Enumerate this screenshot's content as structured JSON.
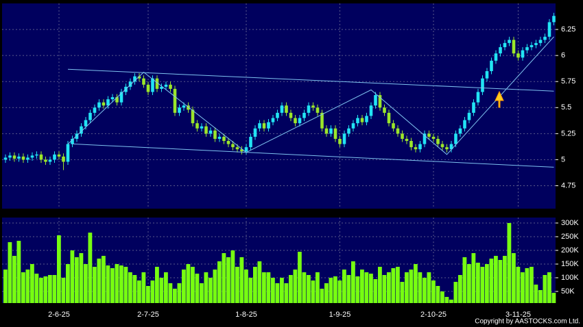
{
  "chart_data": [
    {
      "type": "candlestick",
      "open": [
        5.0,
        5.02,
        5.04,
        5.01,
        5.03,
        5.0,
        5.02,
        5.04,
        5.05,
        5.0,
        4.98,
        5.0,
        5.05,
        5.03,
        4.98,
        5.15,
        5.2,
        5.25,
        5.32,
        5.38,
        5.45,
        5.5,
        5.55,
        5.52,
        5.58,
        5.6,
        5.55,
        5.65,
        5.7,
        5.75,
        5.8,
        5.78,
        5.72,
        5.65,
        5.78,
        5.68,
        5.7,
        5.72,
        5.68,
        5.45,
        5.5,
        5.52,
        5.48,
        5.35,
        5.3,
        5.32,
        5.25,
        5.28,
        5.2,
        5.22,
        5.18,
        5.15,
        5.12,
        5.1,
        5.08,
        5.12,
        5.22,
        5.3,
        5.35,
        5.3,
        5.36,
        5.4,
        5.45,
        5.52,
        5.45,
        5.4,
        5.35,
        5.4,
        5.45,
        5.52,
        5.5,
        5.45,
        5.3,
        5.25,
        5.3,
        5.2,
        5.15,
        5.25,
        5.3,
        5.35,
        5.4,
        5.36,
        5.42,
        5.52,
        5.62,
        5.5,
        5.45,
        5.35,
        5.3,
        5.25,
        5.2,
        5.18,
        5.12,
        5.1,
        5.15,
        5.25,
        5.22,
        5.2,
        5.15,
        5.12,
        5.1,
        5.15,
        5.25,
        5.3,
        5.38,
        5.45,
        5.55,
        5.65,
        5.78,
        5.85,
        5.95,
        6.02,
        6.08,
        6.12,
        6.15,
        6.02,
        5.98,
        6.05,
        6.08,
        6.1,
        6.12,
        6.15,
        6.18,
        6.32
      ],
      "high": [
        5.05,
        5.07,
        5.07,
        5.06,
        5.06,
        5.05,
        5.07,
        5.08,
        5.08,
        5.03,
        5.03,
        5.08,
        5.08,
        5.06,
        5.18,
        5.23,
        5.28,
        5.35,
        5.41,
        5.48,
        5.53,
        5.58,
        5.58,
        5.61,
        5.63,
        5.63,
        5.68,
        5.73,
        5.78,
        5.83,
        5.83,
        5.81,
        5.75,
        5.81,
        5.81,
        5.73,
        5.75,
        5.75,
        5.71,
        5.53,
        5.55,
        5.55,
        5.51,
        5.38,
        5.35,
        5.35,
        5.31,
        5.31,
        5.25,
        5.25,
        5.21,
        5.18,
        5.15,
        5.13,
        5.15,
        5.25,
        5.33,
        5.38,
        5.38,
        5.39,
        5.43,
        5.48,
        5.55,
        5.55,
        5.48,
        5.43,
        5.43,
        5.48,
        5.55,
        5.55,
        5.53,
        5.48,
        5.33,
        5.33,
        5.33,
        5.23,
        5.28,
        5.33,
        5.38,
        5.43,
        5.43,
        5.45,
        5.55,
        5.65,
        5.65,
        5.53,
        5.48,
        5.38,
        5.33,
        5.28,
        5.23,
        5.21,
        5.15,
        5.18,
        5.28,
        5.28,
        5.25,
        5.23,
        5.18,
        5.15,
        5.18,
        5.28,
        5.33,
        5.41,
        5.48,
        5.58,
        5.68,
        5.81,
        5.88,
        5.98,
        6.05,
        6.11,
        6.15,
        6.18,
        6.18,
        6.05,
        6.08,
        6.11,
        6.13,
        6.15,
        6.18,
        6.21,
        6.35,
        6.41
      ],
      "low": [
        4.97,
        4.99,
        4.98,
        4.98,
        4.97,
        4.97,
        4.99,
        5.01,
        4.97,
        4.95,
        4.95,
        4.97,
        5.0,
        4.9,
        4.95,
        5.12,
        5.17,
        5.22,
        5.29,
        5.35,
        5.42,
        5.47,
        5.49,
        5.49,
        5.55,
        5.52,
        5.52,
        5.62,
        5.67,
        5.72,
        5.75,
        5.69,
        5.62,
        5.62,
        5.65,
        5.65,
        5.67,
        5.65,
        5.42,
        5.42,
        5.47,
        5.45,
        5.32,
        5.27,
        5.27,
        5.22,
        5.22,
        5.17,
        5.17,
        5.15,
        5.12,
        5.09,
        5.07,
        5.05,
        5.05,
        5.09,
        5.19,
        5.27,
        5.27,
        5.27,
        5.33,
        5.37,
        5.42,
        5.42,
        5.37,
        5.32,
        5.32,
        5.37,
        5.42,
        5.47,
        5.42,
        5.27,
        5.22,
        5.22,
        5.17,
        5.12,
        5.12,
        5.22,
        5.27,
        5.32,
        5.33,
        5.33,
        5.39,
        5.49,
        5.47,
        5.42,
        5.32,
        5.27,
        5.22,
        5.17,
        5.15,
        5.09,
        5.07,
        5.07,
        5.12,
        5.19,
        5.17,
        5.12,
        5.09,
        5.07,
        5.07,
        5.12,
        5.22,
        5.27,
        5.35,
        5.42,
        5.52,
        5.62,
        5.75,
        5.82,
        5.92,
        5.99,
        6.05,
        6.09,
        5.99,
        5.95,
        5.95,
        6.02,
        6.05,
        6.07,
        6.09,
        6.12,
        6.15,
        6.29
      ],
      "close": [
        5.02,
        5.04,
        5.01,
        5.03,
        5.0,
        5.02,
        5.04,
        5.05,
        5.0,
        4.98,
        5.0,
        5.05,
        5.03,
        4.98,
        5.15,
        5.2,
        5.25,
        5.32,
        5.38,
        5.45,
        5.5,
        5.55,
        5.52,
        5.58,
        5.6,
        5.55,
        5.65,
        5.7,
        5.75,
        5.8,
        5.78,
        5.72,
        5.65,
        5.78,
        5.68,
        5.7,
        5.72,
        5.68,
        5.45,
        5.5,
        5.52,
        5.48,
        5.35,
        5.3,
        5.32,
        5.25,
        5.28,
        5.2,
        5.22,
        5.18,
        5.15,
        5.12,
        5.1,
        5.08,
        5.12,
        5.22,
        5.3,
        5.35,
        5.3,
        5.36,
        5.4,
        5.45,
        5.52,
        5.45,
        5.4,
        5.35,
        5.4,
        5.45,
        5.52,
        5.5,
        5.45,
        5.3,
        5.25,
        5.3,
        5.2,
        5.15,
        5.25,
        5.3,
        5.35,
        5.4,
        5.36,
        5.42,
        5.52,
        5.62,
        5.5,
        5.45,
        5.35,
        5.3,
        5.25,
        5.2,
        5.18,
        5.12,
        5.1,
        5.15,
        5.25,
        5.22,
        5.2,
        5.15,
        5.12,
        5.1,
        5.15,
        5.25,
        5.3,
        5.38,
        5.45,
        5.55,
        5.65,
        5.78,
        5.85,
        5.95,
        6.02,
        6.08,
        6.12,
        6.15,
        6.02,
        5.98,
        6.05,
        6.08,
        6.1,
        6.12,
        6.15,
        6.18,
        6.32,
        6.38
      ],
      "up_color": "#22e4f4",
      "down_color": "#9be62a",
      "ylim": [
        4.53,
        6.5
      ],
      "yticks": [
        4.75,
        5,
        5.25,
        5.5,
        5.75,
        6,
        6.25
      ],
      "grid": true,
      "trendlines": [
        {
          "color": "#7fc4f0",
          "x": [
            14,
            123
          ],
          "y": [
            5.868,
            5.658
          ]
        },
        {
          "color": "#7fc4f0",
          "x": [
            15,
            123
          ],
          "y": [
            5.151,
            4.928
          ]
        },
        {
          "color": "#7fc4f0",
          "x": [
            14,
            31,
            54,
            82,
            99,
            123
          ],
          "y": [
            5.15,
            5.84,
            5.07,
            5.67,
            5.05,
            6.18
          ]
        }
      ]
    },
    {
      "type": "bar",
      "color": "#77ff11",
      "categories": [
        null,
        null,
        null,
        null,
        null,
        null,
        null,
        null,
        null,
        null,
        null,
        null,
        "2-6-25",
        null,
        null,
        null,
        null,
        null,
        null,
        null,
        null,
        null,
        null,
        null,
        null,
        null,
        null,
        null,
        null,
        null,
        null,
        null,
        "2-7-25",
        null,
        null,
        null,
        null,
        null,
        null,
        null,
        null,
        null,
        null,
        null,
        null,
        null,
        null,
        null,
        null,
        null,
        null,
        null,
        null,
        null,
        "1-8-25",
        null,
        null,
        null,
        null,
        null,
        null,
        null,
        null,
        null,
        null,
        null,
        null,
        null,
        null,
        null,
        null,
        null,
        null,
        null,
        null,
        "1-9-25",
        null,
        null,
        null,
        null,
        null,
        null,
        null,
        null,
        null,
        null,
        null,
        null,
        null,
        null,
        null,
        null,
        null,
        null,
        null,
        null,
        "2-10-25",
        null,
        null,
        null,
        null,
        null,
        null,
        null,
        null,
        null,
        null,
        null,
        null,
        null,
        null,
        null,
        null,
        null,
        null,
        "3-11-25",
        null,
        null,
        null,
        null,
        null,
        null,
        null,
        null
      ],
      "values": [
        130000,
        230000,
        180000,
        235000,
        120000,
        130000,
        150000,
        115000,
        100000,
        105000,
        110000,
        110000,
        255000,
        100000,
        150000,
        200000,
        175000,
        190000,
        150000,
        265000,
        140000,
        170000,
        180000,
        145000,
        135000,
        150000,
        145000,
        140000,
        120000,
        110000,
        90000,
        120000,
        70000,
        90000,
        140000,
        100000,
        120000,
        80000,
        60000,
        80000,
        130000,
        150000,
        140000,
        115000,
        80000,
        120000,
        100000,
        130000,
        160000,
        190000,
        175000,
        200000,
        140000,
        175000,
        130000,
        100000,
        140000,
        160000,
        120000,
        120000,
        100000,
        80000,
        100000,
        80000,
        110000,
        130000,
        195000,
        120000,
        110000,
        90000,
        120000,
        60000,
        80000,
        100000,
        105000,
        90000,
        130000,
        110000,
        160000,
        105000,
        130000,
        120000,
        115000,
        95000,
        140000,
        110000,
        120000,
        135000,
        140000,
        85000,
        120000,
        130000,
        150000,
        120000,
        100000,
        120000,
        90000,
        70000,
        50000,
        30000,
        20000,
        85000,
        110000,
        175000,
        150000,
        190000,
        155000,
        140000,
        150000,
        170000,
        180000,
        165000,
        180000,
        300000,
        190000,
        140000,
        120000,
        135000,
        140000,
        75000,
        55000,
        110000,
        120000,
        45000
      ],
      "ylim": [
        7500,
        320000
      ],
      "yticks": [
        {
          "value": 50000,
          "label": "50K"
        },
        {
          "value": 100000,
          "label": "100K"
        },
        {
          "value": 150000,
          "label": "150K"
        },
        {
          "value": 200000,
          "label": "200K"
        },
        {
          "value": 250000,
          "label": "250K"
        },
        {
          "value": 300000,
          "label": "300K"
        }
      ],
      "grid": true
    }
  ],
  "copyright": "Copyright by AASTOCKS.com Ltd."
}
